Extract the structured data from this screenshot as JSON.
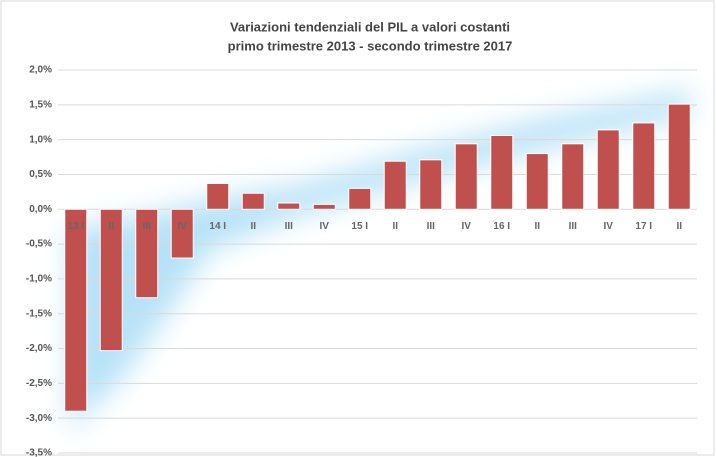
{
  "chart_data": {
    "type": "bar",
    "title": "Variazioni tendenziali del PIL a valori costanti",
    "subtitle": "primo trimestre 2013 - secondo trimestre 2017",
    "categories": [
      "13 I",
      "II",
      "III",
      "IV",
      "14 I",
      "II",
      "III",
      "IV",
      "15 I",
      "II",
      "III",
      "IV",
      "16 I",
      "II",
      "III",
      "IV",
      "17 I",
      "II"
    ],
    "values": [
      -2.9,
      -2.03,
      -1.27,
      -0.7,
      0.37,
      0.23,
      0.09,
      0.07,
      0.3,
      0.69,
      0.71,
      0.94,
      1.06,
      0.8,
      0.94,
      1.14,
      1.24,
      1.51
    ],
    "color": "#c0504d",
    "ylim": [
      -3.5,
      2.0
    ],
    "yticks": [
      {
        "value": -3.5,
        "label": "-3,5%"
      },
      {
        "value": -3.0,
        "label": "-3,0%"
      },
      {
        "value": -2.5,
        "label": "-2,5%"
      },
      {
        "value": -2.0,
        "label": "-2,0%"
      },
      {
        "value": -1.5,
        "label": "-1,5%"
      },
      {
        "value": -1.0,
        "label": "-1,0%"
      },
      {
        "value": -0.5,
        "label": "-0,5%"
      },
      {
        "value": 0,
        "label": "0,0%"
      },
      {
        "value": 0.5,
        "label": "0,5%"
      },
      {
        "value": 1.0,
        "label": "1,0%"
      },
      {
        "value": 1.5,
        "label": "1,5%"
      },
      {
        "value": 2.0,
        "label": "2,0%"
      }
    ],
    "grid": true
  }
}
